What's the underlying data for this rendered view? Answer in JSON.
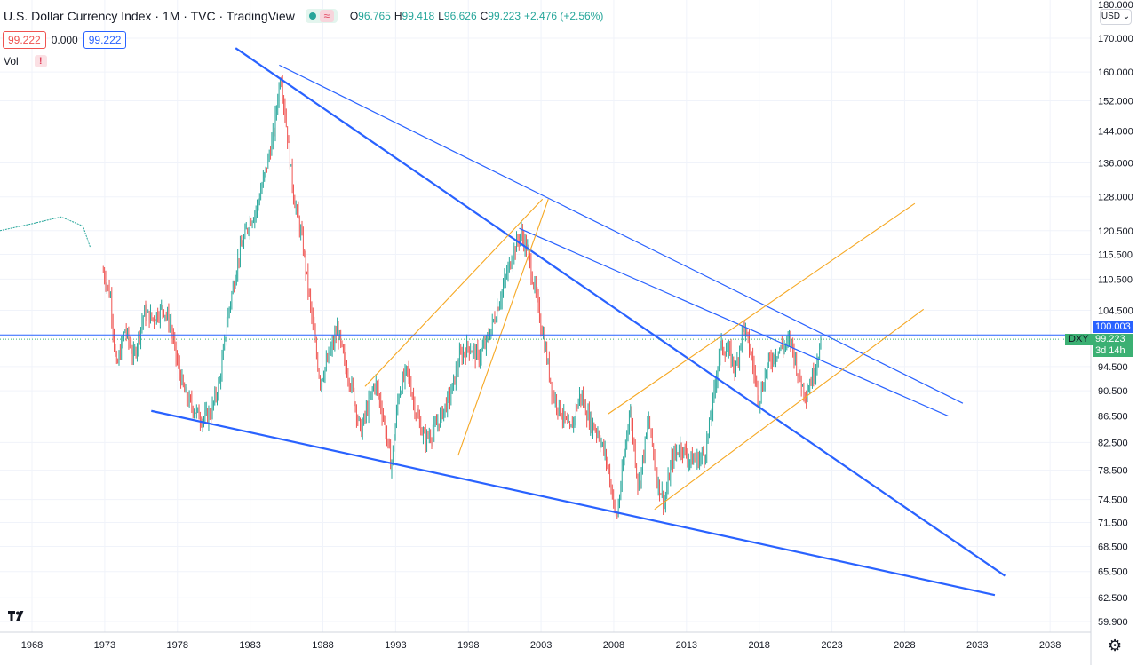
{
  "header": {
    "title": "U.S. Dollar Currency Index · 1M · TVC · TradingView",
    "ohlc": [
      {
        "k": "O",
        "v": "96.765"
      },
      {
        "k": "H",
        "v": "99.418"
      },
      {
        "k": "L",
        "v": "96.626"
      },
      {
        "k": "C",
        "v": "99.223"
      },
      {
        "k": "",
        "v": "+2.476 (+2.56%)"
      }
    ]
  },
  "quick_order": {
    "sell": "99.222",
    "spread": "0.000",
    "buy": "99.222"
  },
  "volume": {
    "label": "Vol",
    "warning": "!"
  },
  "price_scale": {
    "top_label": "180.000",
    "currency": "USD ⌄",
    "current_price": "100.003",
    "symbol_tag": "DXY",
    "last_price": "99.223",
    "countdown": "3d 14h"
  },
  "icons": {
    "logo": "tradingview-logo-icon",
    "settings": "gear-icon"
  },
  "colors": {
    "up": "#26a69a",
    "down": "#ef5350",
    "trend_blue": "#2962ff",
    "channel_orange": "#f6a823",
    "price_line": "#2962ff",
    "last_price_tag": "#3bb073"
  },
  "chart_data": {
    "type": "candlestick",
    "title": "U.S. Dollar Currency Index",
    "scale": "log",
    "ylim": [
      59,
      180
    ],
    "xlim": [
      1965.8,
      2040.8
    ],
    "y_ticks": [
      170,
      160,
      152,
      144,
      136,
      128,
      120.5,
      115.5,
      110.5,
      104.5,
      100.003,
      94.5,
      90.5,
      86.5,
      82.5,
      78.5,
      74.5,
      71.5,
      68.5,
      65.5,
      62.5,
      59.9
    ],
    "y_tick_labels": [
      "170.000",
      "160.000",
      "152.000",
      "144.000",
      "136.000",
      "128.000",
      "120.500",
      "115.500",
      "110.500",
      "104.500",
      "",
      "94.500",
      "90.500",
      "86.500",
      "82.500",
      "78.500",
      "74.500",
      "71.500",
      "68.500",
      "65.500",
      "62.500",
      "59.900"
    ],
    "x_ticks": [
      "1968",
      "1973",
      "1978",
      "1983",
      "1988",
      "1993",
      "1998",
      "2003",
      "2008",
      "2013",
      "2018",
      "2023",
      "2028",
      "2033",
      "2038"
    ],
    "pre_history_line": [
      [
        1965.8,
        120.5
      ],
      [
        1968.0,
        122.0
      ],
      [
        1970.0,
        123.5
      ],
      [
        1971.5,
        121.5
      ],
      [
        1972.0,
        117.0
      ]
    ],
    "price_path": [
      [
        1972.9,
        112
      ],
      [
        1973.4,
        107
      ],
      [
        1973.8,
        94
      ],
      [
        1974.4,
        101
      ],
      [
        1975.0,
        96
      ],
      [
        1975.7,
        104
      ],
      [
        1976.3,
        103
      ],
      [
        1977.0,
        105
      ],
      [
        1977.5,
        102
      ],
      [
        1978.0,
        95
      ],
      [
        1978.5,
        90
      ],
      [
        1979.0,
        88
      ],
      [
        1979.7,
        86
      ],
      [
        1980.3,
        87
      ],
      [
        1980.9,
        92
      ],
      [
        1981.5,
        104
      ],
      [
        1982.2,
        115
      ],
      [
        1982.9,
        122
      ],
      [
        1983.4,
        125
      ],
      [
        1984.0,
        133
      ],
      [
        1984.6,
        143
      ],
      [
        1985.1,
        160
      ],
      [
        1985.5,
        145
      ],
      [
        1986.0,
        128
      ],
      [
        1986.6,
        118
      ],
      [
        1987.2,
        104
      ],
      [
        1987.8,
        92
      ],
      [
        1988.4,
        96
      ],
      [
        1989.0,
        101
      ],
      [
        1989.5,
        95
      ],
      [
        1990.0,
        91
      ],
      [
        1990.6,
        84
      ],
      [
        1991.2,
        89
      ],
      [
        1991.6,
        92
      ],
      [
        1992.2,
        86
      ],
      [
        1992.7,
        79
      ],
      [
        1993.2,
        90
      ],
      [
        1993.8,
        94
      ],
      [
        1994.4,
        87
      ],
      [
        1995.0,
        83
      ],
      [
        1995.6,
        84
      ],
      [
        1996.2,
        87
      ],
      [
        1996.8,
        90
      ],
      [
        1997.4,
        96
      ],
      [
        1998.0,
        98
      ],
      [
        1998.7,
        96
      ],
      [
        1999.3,
        99
      ],
      [
        1999.9,
        104
      ],
      [
        2000.5,
        110
      ],
      [
        2001.1,
        116
      ],
      [
        2001.6,
        120
      ],
      [
        2002.0,
        117
      ],
      [
        2002.6,
        108
      ],
      [
        2003.2,
        99
      ],
      [
        2003.8,
        90
      ],
      [
        2004.4,
        87
      ],
      [
        2005.0,
        84
      ],
      [
        2005.7,
        90
      ],
      [
        2006.3,
        86
      ],
      [
        2006.9,
        84
      ],
      [
        2007.5,
        80
      ],
      [
        2008.2,
        72
      ],
      [
        2008.7,
        80
      ],
      [
        2009.1,
        88
      ],
      [
        2009.7,
        76
      ],
      [
        2010.4,
        86
      ],
      [
        2011.0,
        77
      ],
      [
        2011.5,
        74
      ],
      [
        2012.0,
        80
      ],
      [
        2012.6,
        82
      ],
      [
        2013.2,
        80
      ],
      [
        2013.8,
        80
      ],
      [
        2014.3,
        81
      ],
      [
        2014.9,
        90
      ],
      [
        2015.3,
        98
      ],
      [
        2015.9,
        97
      ],
      [
        2016.4,
        94
      ],
      [
        2016.9,
        102
      ],
      [
        2017.4,
        97
      ],
      [
        2018.0,
        89
      ],
      [
        2018.6,
        95
      ],
      [
        2019.2,
        97
      ],
      [
        2019.7,
        98
      ],
      [
        2020.2,
        99
      ],
      [
        2020.7,
        93
      ],
      [
        2021.2,
        90
      ],
      [
        2021.7,
        93
      ],
      [
        2022.3,
        99.2
      ]
    ],
    "drawings": [
      {
        "color": "blue",
        "width": 2.2,
        "points": [
          [
            1982.0,
            167
          ],
          [
            2034.9,
            65
          ]
        ]
      },
      {
        "color": "blue",
        "width": 1.2,
        "points": [
          [
            1985.0,
            162
          ],
          [
            2032.0,
            88.5
          ]
        ]
      },
      {
        "color": "blue",
        "width": 1.2,
        "points": [
          [
            2001.5,
            121
          ],
          [
            2031.0,
            86.5
          ]
        ]
      },
      {
        "color": "blue",
        "width": 2.2,
        "points": [
          [
            1976.2,
            87.3
          ],
          [
            2034.2,
            62.8
          ]
        ]
      },
      {
        "color": "orange",
        "width": 1.1,
        "points": [
          [
            1990.9,
            91.2
          ],
          [
            2003.1,
            127.5
          ]
        ]
      },
      {
        "color": "orange",
        "width": 1.1,
        "points": [
          [
            1997.3,
            80.6
          ],
          [
            2003.5,
            127.5
          ]
        ]
      },
      {
        "color": "orange",
        "width": 1.1,
        "points": [
          [
            2007.6,
            86.8
          ],
          [
            2028.7,
            126.5
          ]
        ]
      },
      {
        "color": "orange",
        "width": 1.1,
        "points": [
          [
            2010.8,
            73.2
          ],
          [
            2029.3,
            104.7
          ]
        ]
      }
    ],
    "current_price_line": 100.003
  }
}
